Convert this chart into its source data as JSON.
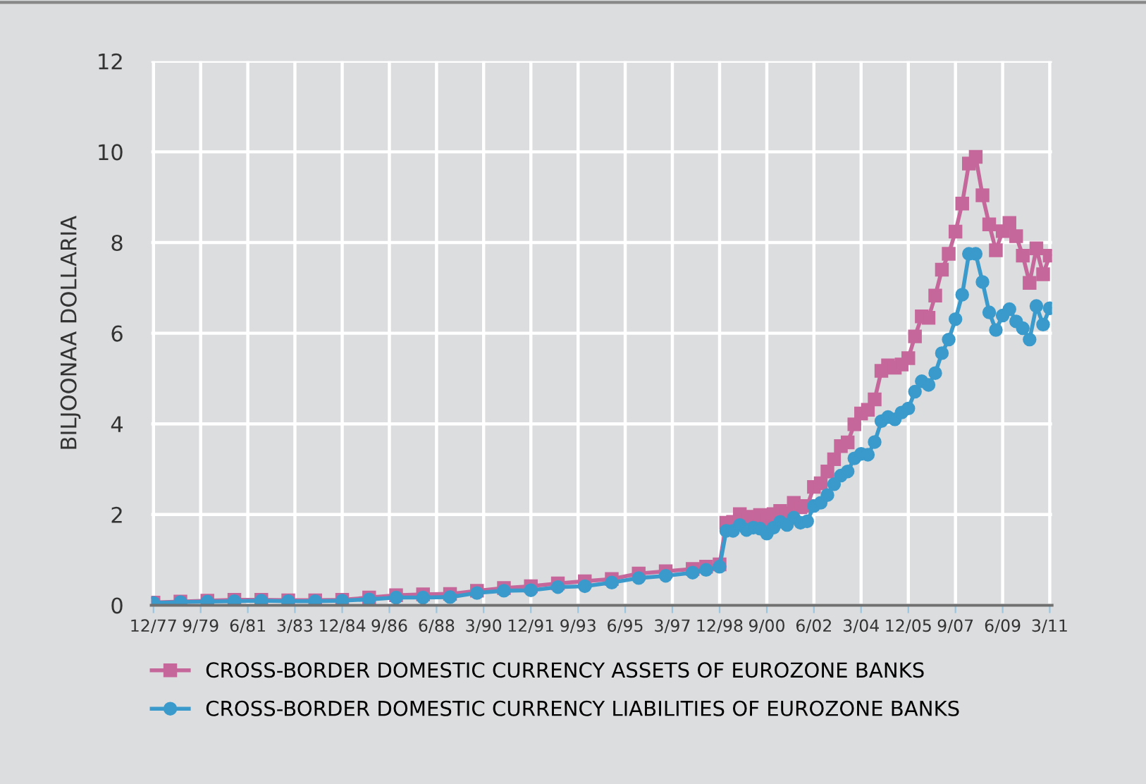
{
  "chart_data": {
    "type": "line",
    "ylabel": "BILJOONAA DOLLARIA",
    "ylim": [
      0,
      12
    ],
    "yticks": [
      0,
      2,
      4,
      6,
      8,
      10,
      12
    ],
    "xlim": [
      "1977-11",
      "2011-04"
    ],
    "xticks": [
      {
        "value": "1977-12",
        "label": "12/77"
      },
      {
        "value": "1979-09",
        "label": "9/79"
      },
      {
        "value": "1981-06",
        "label": "6/81"
      },
      {
        "value": "1983-03",
        "label": "3/83"
      },
      {
        "value": "1984-12",
        "label": "12/84"
      },
      {
        "value": "1986-09",
        "label": "9/86"
      },
      {
        "value": "1988-06",
        "label": "6/88"
      },
      {
        "value": "1990-03",
        "label": "3/90"
      },
      {
        "value": "1991-12",
        "label": "12/91"
      },
      {
        "value": "1993-09",
        "label": "9/93"
      },
      {
        "value": "1995-06",
        "label": "6/95"
      },
      {
        "value": "1997-03",
        "label": "3/97"
      },
      {
        "value": "1998-12",
        "label": "12/98"
      },
      {
        "value": "2000-09",
        "label": "9/00"
      },
      {
        "value": "2002-06",
        "label": "6/02"
      },
      {
        "value": "2004-03",
        "label": "3/04"
      },
      {
        "value": "2005-12",
        "label": "12/05"
      },
      {
        "value": "2007-09",
        "label": "9/07"
      },
      {
        "value": "2009-06",
        "label": "6/09"
      },
      {
        "value": "2011-03",
        "label": "3/11"
      }
    ],
    "grid": true,
    "legend": "bottom",
    "x": [
      "1977-12",
      "1978-12",
      "1979-12",
      "1980-12",
      "1981-12",
      "1982-12",
      "1983-12",
      "1984-12",
      "1985-12",
      "1986-12",
      "1987-12",
      "1988-12",
      "1989-12",
      "1990-12",
      "1991-12",
      "1992-12",
      "1993-12",
      "1994-12",
      "1995-12",
      "1996-12",
      "1997-12",
      "1998-06",
      "1998-12",
      "1999-03",
      "1999-06",
      "1999-09",
      "1999-12",
      "2000-03",
      "2000-06",
      "2000-09",
      "2000-12",
      "2001-03",
      "2001-06",
      "2001-09",
      "2001-12",
      "2002-03",
      "2002-06",
      "2002-09",
      "2002-12",
      "2003-03",
      "2003-06",
      "2003-09",
      "2003-12",
      "2004-03",
      "2004-06",
      "2004-09",
      "2004-12",
      "2005-03",
      "2005-06",
      "2005-09",
      "2005-12",
      "2006-03",
      "2006-06",
      "2006-09",
      "2006-12",
      "2007-03",
      "2007-06",
      "2007-09",
      "2007-12",
      "2008-03",
      "2008-06",
      "2008-09",
      "2008-12",
      "2009-03",
      "2009-06",
      "2009-09",
      "2009-12",
      "2010-03",
      "2010-06",
      "2010-09",
      "2010-12",
      "2011-03"
    ],
    "series": [
      {
        "name": "CROSS-BORDER DOMESTIC CURRENCY ASSETS OF EUROZONE BANKS",
        "color": "#c6679b",
        "marker": "square",
        "values": [
          0.06,
          0.08,
          0.1,
          0.12,
          0.12,
          0.11,
          0.11,
          0.12,
          0.17,
          0.22,
          0.24,
          0.25,
          0.32,
          0.38,
          0.42,
          0.48,
          0.53,
          0.58,
          0.7,
          0.75,
          0.8,
          0.85,
          0.9,
          1.82,
          1.84,
          2.01,
          1.93,
          1.95,
          1.99,
          1.87,
          2.01,
          2.08,
          2.03,
          2.26,
          2.16,
          2.19,
          2.61,
          2.69,
          2.95,
          3.22,
          3.51,
          3.59,
          3.99,
          4.23,
          4.31,
          4.54,
          5.17,
          5.29,
          5.24,
          5.31,
          5.45,
          5.93,
          6.37,
          6.34,
          6.83,
          7.4,
          7.75,
          8.24,
          8.86,
          9.74,
          9.89,
          9.04,
          8.4,
          7.83,
          8.25,
          8.43,
          8.14,
          7.71,
          7.11,
          7.87,
          7.3,
          7.71
        ]
      },
      {
        "name": "CROSS-BORDER DOMESTIC CURRENCY LIABILITIES OF EUROZONE BANKS",
        "color": "#3a9acb",
        "marker": "circle",
        "values": [
          0.05,
          0.07,
          0.08,
          0.09,
          0.1,
          0.09,
          0.09,
          0.1,
          0.13,
          0.17,
          0.17,
          0.18,
          0.27,
          0.32,
          0.33,
          0.4,
          0.42,
          0.5,
          0.6,
          0.65,
          0.72,
          0.78,
          0.85,
          1.64,
          1.64,
          1.77,
          1.66,
          1.71,
          1.69,
          1.58,
          1.71,
          1.84,
          1.77,
          1.93,
          1.82,
          1.85,
          2.19,
          2.26,
          2.43,
          2.67,
          2.86,
          2.95,
          3.24,
          3.34,
          3.32,
          3.6,
          4.06,
          4.15,
          4.1,
          4.25,
          4.34,
          4.71,
          4.94,
          4.86,
          5.12,
          5.56,
          5.86,
          6.31,
          6.85,
          7.75,
          7.75,
          7.13,
          6.46,
          6.07,
          6.39,
          6.53,
          6.26,
          6.11,
          5.86,
          6.6,
          6.19,
          6.55
        ]
      }
    ]
  }
}
